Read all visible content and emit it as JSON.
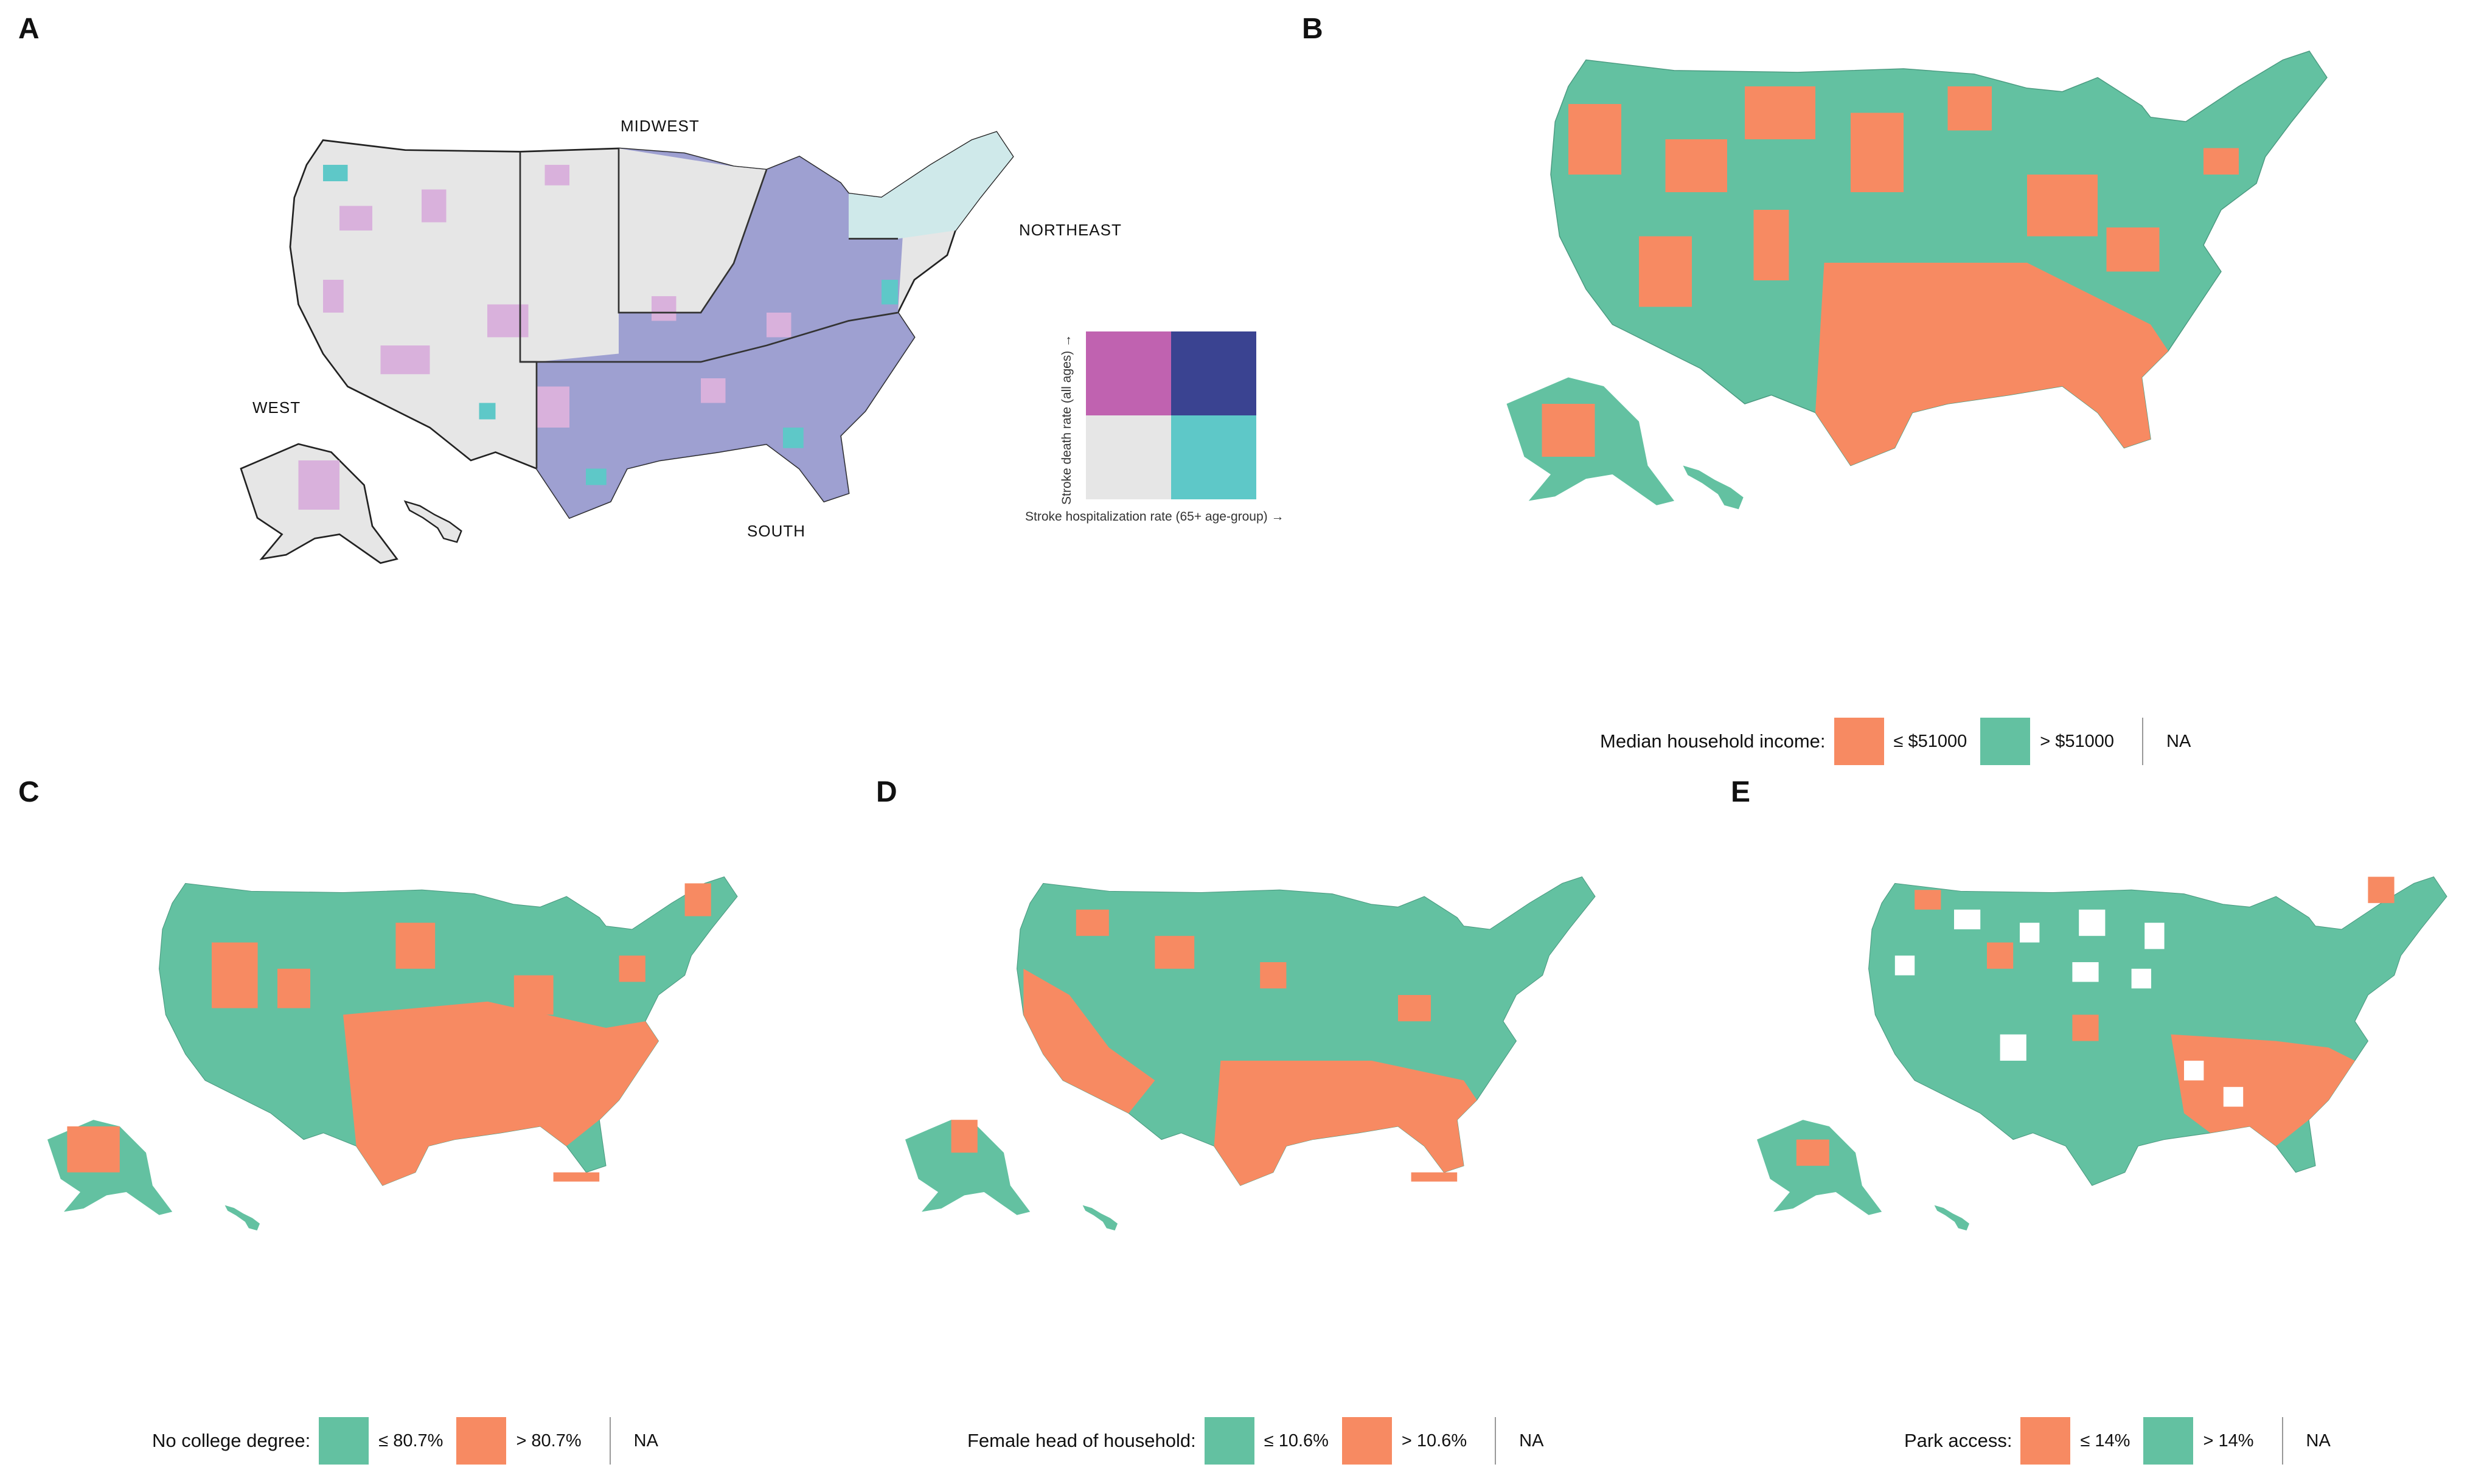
{
  "panels": {
    "a": {
      "letter": "A",
      "regions": {
        "midwest": "MIDWEST",
        "northeast": "NORTHEAST",
        "west": "WEST",
        "south": "SOUTH"
      },
      "bivariate_legend": {
        "y_axis": "Stroke death rate (all ages) →",
        "x_axis": "Stroke hospitalization rate (65+ age-group) →",
        "colors": {
          "high_death_low_hosp": "#c062b0",
          "high_both": "#3a4391",
          "low_both": "#e6e6e6",
          "low_death_high_hosp": "#5ec8c8"
        }
      }
    },
    "b": {
      "letter": "B",
      "legend_title": "Median household income:",
      "low_label": "≤ $51000",
      "high_label": "> $51000",
      "na_label": "NA",
      "low_color": "#f78a62",
      "high_color": "#63c1a1"
    },
    "c": {
      "letter": "C",
      "legend_title": "No college degree:",
      "first_label": "≤ 80.7%",
      "second_label": "> 80.7%",
      "na_label": "NA",
      "first_color": "#63c1a1",
      "second_color": "#f78a62"
    },
    "d": {
      "letter": "D",
      "legend_title": "Female head of household:",
      "first_label": "≤ 10.6%",
      "second_label": "> 10.6%",
      "na_label": "NA",
      "first_color": "#63c1a1",
      "second_color": "#f78a62"
    },
    "e": {
      "letter": "E",
      "legend_title": "Park access:",
      "first_label": "≤ 14%",
      "second_label": "> 14%",
      "na_label": "NA",
      "first_color": "#f78a62",
      "second_color": "#63c1a1"
    }
  },
  "colors": {
    "orange": "#f78a62",
    "teal": "#63c1a1",
    "purple": "#c062b0",
    "navy": "#3a4391",
    "light_purple": "#d9b1dc",
    "lavender": "#9a9cd0",
    "grey": "#e6e6e6",
    "cyan": "#5ec8c8"
  }
}
